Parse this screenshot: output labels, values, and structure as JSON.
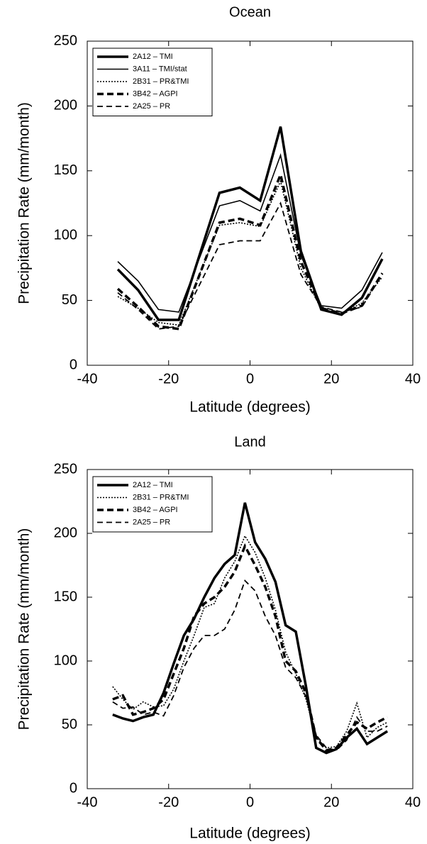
{
  "chart_data": [
    {
      "type": "line",
      "title": "Ocean",
      "xlabel": "Latitude (degrees)",
      "ylabel": "Precipitation Rate (mm/month)",
      "x": [
        -32.5,
        -27.5,
        -22.5,
        -17.5,
        -7.5,
        -2.5,
        2.5,
        7.5,
        12.5,
        17.5,
        22.5,
        27.5,
        32.5
      ],
      "series": [
        {
          "name": "2A12 – TMI",
          "color": "#000000",
          "width": 3.5,
          "dash": "none",
          "values": [
            74,
            58,
            35,
            35,
            133,
            137,
            127,
            184,
            88,
            43,
            39,
            52,
            82
          ]
        },
        {
          "name": "3A11 – TMI/stat",
          "color": "#000000",
          "width": 1.6,
          "dash": "none",
          "values": [
            80,
            65,
            43,
            41,
            123,
            127,
            119,
            162,
            85,
            46,
            44,
            58,
            87
          ]
        },
        {
          "name": "2B31 – PR&TMI",
          "color": "#000000",
          "width": 1.6,
          "dash": "2,2",
          "values": [
            53,
            44,
            33,
            31,
            108,
            110,
            107,
            142,
            75,
            43,
            40,
            48,
            68
          ]
        },
        {
          "name": "3B42 – AGPI",
          "color": "#000000",
          "width": 3.5,
          "dash": "9,5",
          "values": [
            59,
            45,
            30,
            28,
            110,
            113,
            108,
            147,
            80,
            44,
            40,
            46,
            71
          ]
        },
        {
          "name": "2A25 – PR",
          "color": "#000000",
          "width": 1.8,
          "dash": "8,5",
          "values": [
            56,
            43,
            28,
            30,
            93,
            96,
            96,
            125,
            70,
            45,
            41,
            45,
            70
          ]
        }
      ],
      "xlim": [
        -40,
        40
      ],
      "xticks": [
        -40,
        -20,
        0,
        20,
        40
      ],
      "ylim": [
        0,
        250
      ],
      "yticks": [
        0,
        50,
        100,
        150,
        200,
        250
      ],
      "legend": "upper-left"
    },
    {
      "type": "line",
      "title": "Land",
      "xlabel": "Latitude (degrees)",
      "ylabel": "Precipitation Rate (mm/month)",
      "x": [
        -33.75,
        -31.25,
        -28.75,
        -26.25,
        -23.75,
        -21.25,
        -18.75,
        -16.25,
        -13.75,
        -11.25,
        -8.75,
        -6.25,
        -3.75,
        -1.25,
        1.25,
        3.75,
        6.25,
        8.75,
        11.25,
        13.75,
        16.25,
        18.75,
        21.25,
        23.75,
        26.25,
        28.75,
        31.25,
        33.75
      ],
      "series": [
        {
          "name": "2A12 – TMI",
          "color": "#000000",
          "width": 3.5,
          "dash": "none",
          "values": [
            58,
            55,
            53,
            56,
            58,
            75,
            98,
            120,
            133,
            150,
            165,
            176,
            183,
            224,
            193,
            180,
            162,
            128,
            123,
            80,
            32,
            28,
            31,
            40,
            47,
            35,
            40,
            45
          ]
        },
        {
          "name": "2B31 – PR&TMI",
          "color": "#000000",
          "width": 1.6,
          "dash": "2,2",
          "values": [
            80,
            70,
            62,
            68,
            64,
            65,
            78,
            100,
            120,
            142,
            145,
            165,
            178,
            198,
            185,
            165,
            140,
            107,
            90,
            70,
            40,
            32,
            33,
            45,
            67,
            40,
            48,
            52
          ]
        },
        {
          "name": "3B42 – AGPI",
          "color": "#000000",
          "width": 3.5,
          "dash": "9,5",
          "values": [
            70,
            73,
            58,
            60,
            63,
            70,
            90,
            110,
            135,
            145,
            150,
            158,
            170,
            190,
            175,
            158,
            135,
            100,
            92,
            75,
            40,
            30,
            32,
            42,
            52,
            47,
            52,
            56
          ]
        },
        {
          "name": "2A25 – PR",
          "color": "#000000",
          "width": 1.8,
          "dash": "8,5",
          "values": [
            68,
            63,
            64,
            58,
            60,
            57,
            73,
            95,
            110,
            120,
            120,
            125,
            140,
            163,
            155,
            135,
            120,
            95,
            87,
            72,
            42,
            32,
            30,
            38,
            56,
            45,
            45,
            49
          ]
        }
      ],
      "xlim": [
        -40,
        40
      ],
      "xticks": [
        -40,
        -20,
        0,
        20,
        40
      ],
      "ylim": [
        0,
        250
      ],
      "yticks": [
        0,
        50,
        100,
        150,
        200,
        250
      ],
      "legend": "upper-left"
    }
  ]
}
